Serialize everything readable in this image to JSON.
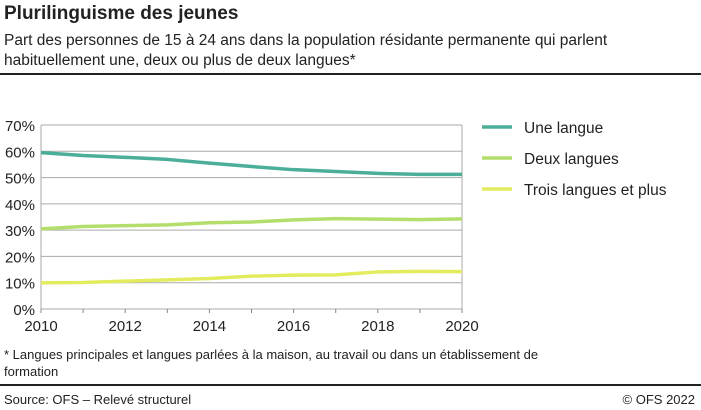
{
  "title": "Plurilinguisme des jeunes",
  "subtitle": "Part des personnes de 15 à 24 ans dans la population résidante permanente qui parlent habituellement une, deux ou plus de deux langues*",
  "footnote": "* Langues principales et langues parlées à la maison, au travail ou dans un établissement de formation",
  "source": "Source: OFS – Relevé structurel",
  "copyright": "© OFS 2022",
  "chart_data": {
    "type": "line",
    "x": [
      2010,
      2011,
      2012,
      2013,
      2014,
      2015,
      2016,
      2017,
      2018,
      2019,
      2020
    ],
    "xlim": [
      2010,
      2020
    ],
    "xticks": [
      "2010",
      "2012",
      "2014",
      "2016",
      "2018",
      "2020"
    ],
    "ylim": [
      0,
      70
    ],
    "yticks": [
      "0%",
      "10%",
      "20%",
      "30%",
      "40%",
      "50%",
      "60%",
      "70%"
    ],
    "grid": true,
    "legend": "right",
    "series": [
      {
        "name": "Une langue",
        "color": "#4aae98",
        "values": [
          59.5,
          58.4,
          57.7,
          56.9,
          55.5,
          54.2,
          53.0,
          52.3,
          51.6,
          51.2,
          51.2
        ]
      },
      {
        "name": "Deux langues",
        "color": "#b4de6c",
        "values": [
          30.5,
          31.4,
          31.7,
          32.0,
          32.8,
          33.1,
          33.9,
          34.4,
          34.2,
          34.0,
          34.3
        ]
      },
      {
        "name": "Trois langues et plus",
        "color": "#e3ec5e",
        "values": [
          10.0,
          10.1,
          10.6,
          11.1,
          11.6,
          12.5,
          12.9,
          13.0,
          14.1,
          14.3,
          14.2
        ]
      }
    ]
  }
}
